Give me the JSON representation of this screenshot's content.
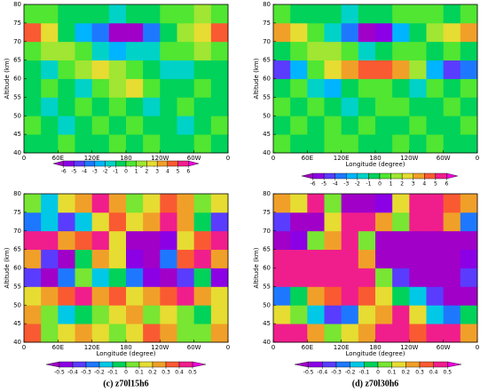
{
  "chart_data": [
    {
      "type": "heatmap",
      "xlabel": "Longitude (degree)",
      "ylabel": "Altitude (km)",
      "xlim": [
        0,
        360
      ],
      "ylim": [
        40,
        80
      ],
      "xticks": [
        0,
        {
          "value": 60,
          "label": "60E"
        },
        {
          "value": 120,
          "label": "120E"
        },
        180,
        {
          "value": 240,
          "label": "120W"
        },
        {
          "value": 300,
          "label": "60W"
        },
        {
          "value": 360,
          "label": "0"
        }
      ],
      "yticks": [
        40,
        45,
        50,
        55,
        60,
        65,
        70,
        75,
        80
      ],
      "x": [
        15,
        45,
        75,
        105,
        135,
        165,
        195,
        225,
        255,
        285,
        315,
        345
      ],
      "y": [
        42.5,
        47.5,
        52.5,
        57.5,
        62.5,
        67.5,
        72.5,
        77.5
      ],
      "z": [
        [
          0,
          0,
          1,
          0,
          0,
          1,
          0,
          1,
          0,
          0,
          1,
          0
        ],
        [
          1,
          0,
          -1,
          0,
          1,
          0,
          1,
          0,
          0,
          -1,
          0,
          1
        ],
        [
          0,
          -1,
          0,
          1,
          0,
          1,
          0,
          -1,
          0,
          1,
          0,
          0
        ],
        [
          0,
          1,
          0,
          -1,
          1,
          2,
          3,
          1,
          0,
          0,
          1,
          0
        ],
        [
          0,
          -1,
          1,
          2,
          3,
          2,
          1,
          0,
          -1,
          -1,
          0,
          0
        ],
        [
          1,
          2,
          2,
          1,
          -1,
          -2,
          -1,
          -1,
          1,
          1,
          2,
          1
        ],
        [
          5,
          3,
          0,
          -2,
          -3,
          -6,
          -6,
          -3,
          0,
          2,
          3,
          5
        ],
        [
          1,
          1,
          0,
          0,
          0,
          -1,
          0,
          0,
          1,
          1,
          2,
          1
        ]
      ],
      "colorbar": {
        "ticks": [
          -6,
          -5,
          -4,
          -3,
          -2,
          -1,
          0,
          1,
          2,
          3,
          4,
          5,
          6
        ],
        "colors": [
          "#a000c8",
          "#8c00e6",
          "#5a3cff",
          "#1e78ff",
          "#00b4ff",
          "#00d2c8",
          "#00d25a",
          "#50e632",
          "#a0e632",
          "#e6dc32",
          "#f0a028",
          "#fa5a32",
          "#f01e8c",
          "#f000dc"
        ]
      }
    },
    {
      "type": "heatmap",
      "xlabel": "Longitude (degree)",
      "ylabel": "Altitude (km)",
      "xlim": [
        0,
        360
      ],
      "ylim": [
        40,
        80
      ],
      "xticks": [
        0,
        {
          "value": 60,
          "label": "60E"
        },
        {
          "value": 120,
          "label": "120E"
        },
        180,
        {
          "value": 240,
          "label": "120W"
        },
        {
          "value": 300,
          "label": "60W"
        },
        {
          "value": 360,
          "label": "0"
        }
      ],
      "yticks": [
        40,
        45,
        50,
        55,
        60,
        65,
        70,
        75,
        80
      ],
      "x": [
        15,
        45,
        75,
        105,
        135,
        165,
        195,
        225,
        255,
        285,
        315,
        345
      ],
      "y": [
        42.5,
        47.5,
        52.5,
        57.5,
        62.5,
        67.5,
        72.5,
        77.5
      ],
      "z": [
        [
          1,
          0,
          0,
          1,
          1,
          0,
          0,
          1,
          0,
          1,
          0,
          0
        ],
        [
          0,
          1,
          0,
          1,
          0,
          1,
          0,
          0,
          1,
          0,
          0,
          1
        ],
        [
          1,
          0,
          1,
          0,
          -1,
          0,
          1,
          1,
          0,
          0,
          1,
          0
        ],
        [
          0,
          1,
          -1,
          -2,
          0,
          1,
          1,
          0,
          -1,
          1,
          0,
          1
        ],
        [
          -4,
          -2,
          1,
          3,
          4,
          5,
          5,
          4,
          2,
          -2,
          -4,
          -3
        ],
        [
          0,
          1,
          2,
          2,
          1,
          -1,
          0,
          1,
          1,
          0,
          1,
          0
        ],
        [
          4,
          3,
          1,
          -1,
          -3,
          -6,
          -5,
          -2,
          0,
          2,
          3,
          4
        ],
        [
          1,
          0,
          0,
          0,
          -1,
          0,
          0,
          1,
          1,
          1,
          0,
          1
        ]
      ],
      "colorbar": {
        "ticks": [
          -6,
          -5,
          -4,
          -3,
          -2,
          -1,
          0,
          1,
          2,
          3,
          4,
          5,
          6
        ],
        "colors": [
          "#a000c8",
          "#8c00e6",
          "#5a3cff",
          "#1e78ff",
          "#00b4ff",
          "#00d2c8",
          "#00d25a",
          "#50e632",
          "#a0e632",
          "#e6dc32",
          "#f0a028",
          "#fa5a32",
          "#f01e8c",
          "#f000dc"
        ]
      }
    },
    {
      "type": "heatmap",
      "title": "(c) z70l15h6",
      "xlabel": "Longitude (degree)",
      "ylabel": "Altitude (km)",
      "xlim": [
        0,
        360
      ],
      "ylim": [
        40,
        80
      ],
      "xticks": [
        0,
        {
          "value": 60,
          "label": "60E"
        },
        {
          "value": 120,
          "label": "120E"
        },
        180,
        {
          "value": 240,
          "label": "120W"
        },
        {
          "value": 300,
          "label": "60W"
        },
        {
          "value": 360,
          "label": "0"
        }
      ],
      "yticks": [
        40,
        45,
        50,
        55,
        60,
        65,
        70,
        75,
        80
      ],
      "x": [
        15,
        45,
        75,
        105,
        135,
        165,
        195,
        225,
        255,
        285,
        315,
        345
      ],
      "y": [
        42.5,
        47.5,
        52.5,
        57.5,
        62.5,
        67.5,
        72.5,
        77.5
      ],
      "z": [
        [
          0.4,
          0.1,
          0.2,
          0.3,
          0.2,
          0.1,
          0.2,
          0.4,
          0.3,
          0.1,
          0.1,
          0.3
        ],
        [
          0.3,
          0.1,
          -0.1,
          0,
          0.1,
          0.2,
          0.3,
          0.1,
          0.2,
          0.1,
          0,
          0.2
        ],
        [
          0.2,
          0.3,
          0.4,
          0.5,
          0.3,
          0.4,
          0.2,
          0.3,
          0.4,
          0.5,
          0.3,
          0.2
        ],
        [
          -0.3,
          -0.5,
          -0.2,
          0.1,
          -0.1,
          0,
          -0.2,
          -0.4,
          -0.5,
          -0.3,
          0,
          -0.4
        ],
        [
          0.3,
          -0.3,
          -0.5,
          0,
          0.3,
          0.2,
          -0.4,
          -0.5,
          -0.2,
          0.4,
          0.5,
          0.3
        ],
        [
          0.5,
          0.5,
          0.3,
          0.4,
          0.5,
          0.2,
          -0.5,
          -0.5,
          -0.4,
          0.2,
          0.4,
          0.5
        ],
        [
          -0.2,
          -0.1,
          -0.3,
          -0.1,
          0.2,
          0.4,
          0.2,
          0.3,
          0.5,
          0.3,
          0,
          -0.3
        ],
        [
          0.1,
          -0.1,
          0.2,
          0.3,
          0.5,
          0.3,
          0.1,
          0.2,
          0.4,
          0.3,
          0.1,
          0.2
        ]
      ],
      "colorbar": {
        "ticks": [
          -0.5,
          -0.4,
          -0.3,
          -0.2,
          -0.1,
          0,
          0.1,
          0.2,
          0.3,
          0.4,
          0.5
        ],
        "colors": [
          "#a000c8",
          "#8c00e6",
          "#5a3cff",
          "#1e78ff",
          "#00c8e6",
          "#00d25a",
          "#78e632",
          "#e6dc32",
          "#f0a028",
          "#fa5a32",
          "#f01e8c",
          "#f000dc"
        ]
      }
    },
    {
      "type": "heatmap",
      "title": "(d) z70l30h6",
      "xlabel": "Longitude (degree)",
      "ylabel": "Altitude (km)",
      "xlim": [
        0,
        360
      ],
      "ylim": [
        40,
        80
      ],
      "xticks": [
        0,
        {
          "value": 60,
          "label": "60E"
        },
        {
          "value": 120,
          "label": "120E"
        },
        180,
        {
          "value": 240,
          "label": "120W"
        },
        {
          "value": 300,
          "label": "60W"
        },
        {
          "value": 360,
          "label": "0"
        }
      ],
      "yticks": [
        40,
        45,
        50,
        55,
        60,
        65,
        70,
        75,
        80
      ],
      "x": [
        15,
        45,
        75,
        105,
        135,
        165,
        195,
        225,
        255,
        285,
        315,
        345
      ],
      "y": [
        42.5,
        47.5,
        52.5,
        57.5,
        62.5,
        67.5,
        72.5,
        77.5
      ],
      "z": [
        [
          0.5,
          0.5,
          0.3,
          0.1,
          0.2,
          0.3,
          0.5,
          0.5,
          0.4,
          0.5,
          0.5,
          0.3
        ],
        [
          0.2,
          0.1,
          -0.1,
          -0.3,
          -0.2,
          0.2,
          0.3,
          0.5,
          0.2,
          -0.1,
          -0.2,
          0
        ],
        [
          -0.2,
          0,
          0.3,
          0.4,
          0.5,
          0.4,
          0.2,
          0,
          -0.1,
          -0.3,
          -0.5,
          -0.5
        ],
        [
          0.5,
          0.5,
          0.5,
          0.5,
          0.5,
          0.5,
          0.1,
          -0.3,
          -0.5,
          -0.5,
          -0.5,
          -0.3
        ],
        [
          0.5,
          0.5,
          0.5,
          0.5,
          0.5,
          0.3,
          -0.5,
          -0.5,
          -0.5,
          -0.5,
          -0.5,
          -0.4
        ],
        [
          -0.5,
          -0.4,
          0.1,
          0.3,
          0.5,
          0.1,
          -0.5,
          -0.5,
          -0.5,
          -0.5,
          -0.5,
          -0.5
        ],
        [
          -0.3,
          -0.5,
          -0.5,
          0.2,
          0.5,
          0.5,
          0.3,
          0.1,
          0.5,
          0.5,
          0.3,
          -0.2
        ],
        [
          0.3,
          0.2,
          0.5,
          0.1,
          -0.5,
          -0.5,
          -0.4,
          0.2,
          0.5,
          0.5,
          0.4,
          0.3
        ]
      ],
      "colorbar": {
        "ticks": [
          -0.5,
          -0.4,
          -0.3,
          -0.2,
          -0.1,
          0,
          0.1,
          0.2,
          0.3,
          0.4,
          0.5
        ],
        "colors": [
          "#a000c8",
          "#8c00e6",
          "#5a3cff",
          "#1e78ff",
          "#00c8e6",
          "#00d25a",
          "#78e632",
          "#e6dc32",
          "#f0a028",
          "#fa5a32",
          "#f01e8c",
          "#f000dc"
        ]
      }
    }
  ]
}
